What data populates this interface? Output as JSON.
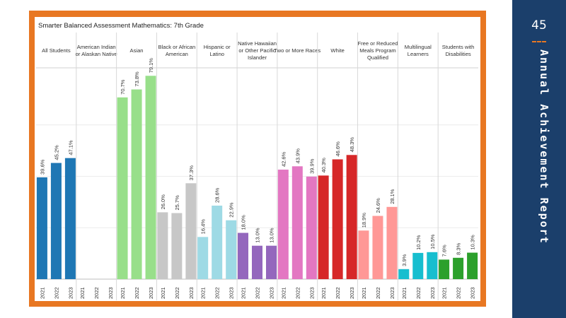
{
  "sidebar": {
    "page_number": "45",
    "title": "Annual  Achievement  Report"
  },
  "chart_data": {
    "type": "bar",
    "title": "Smarter Balanced Assessment Mathematics: 7th Grade",
    "xlabel": "",
    "ylabel": "",
    "ylim": [
      0,
      80
    ],
    "grid": true,
    "legend": "none",
    "years": [
      "2021",
      "2022",
      "2023"
    ],
    "groups": [
      {
        "name": "All Students",
        "color": "#1f77b4",
        "values": [
          39.6,
          45.2,
          47.1
        ],
        "labels": [
          "39.6%",
          "45.2%",
          "47.1%"
        ]
      },
      {
        "name": "American Indian or Alaskan Native",
        "color": "#1f77b4",
        "values": [
          null,
          null,
          null
        ],
        "labels": [
          "",
          "",
          ""
        ]
      },
      {
        "name": "Asian",
        "color": "#98df8a",
        "values": [
          70.7,
          73.8,
          79.1
        ],
        "labels": [
          "70.7%",
          "73.8%",
          "79.1%"
        ]
      },
      {
        "name": "Black or African American",
        "color": "#c7c7c7",
        "values": [
          26.0,
          25.7,
          37.3
        ],
        "labels": [
          "26.0%",
          "25.7%",
          "37.3%"
        ]
      },
      {
        "name": "Hispanic or Latino",
        "color": "#9edae5",
        "values": [
          16.4,
          28.6,
          22.9
        ],
        "labels": [
          "16.4%",
          "28.6%",
          "22.9%"
        ]
      },
      {
        "name": "Native Hawaiian or Other Pacific Islander",
        "color": "#9467bd",
        "values": [
          18.0,
          13.0,
          13.0
        ],
        "labels": [
          "18.0%",
          "13.0%",
          "13.0%"
        ]
      },
      {
        "name": "Two or More Races",
        "color": "#e377c2",
        "values": [
          42.6,
          43.9,
          39.9
        ],
        "labels": [
          "42.6%",
          "43.9%",
          "39.9%"
        ]
      },
      {
        "name": "White",
        "color": "#d62728",
        "values": [
          40.3,
          46.6,
          48.3
        ],
        "labels": [
          "40.3%",
          "46.6%",
          "48.3%"
        ]
      },
      {
        "name": "Free or Reduced Meals Program Qualified",
        "color": "#ff9896",
        "values": [
          18.9,
          24.6,
          28.1
        ],
        "labels": [
          "18.9%",
          "24.6%",
          "28.1%"
        ]
      },
      {
        "name": "Multilingual Learners",
        "color": "#17becf",
        "values": [
          3.9,
          10.2,
          10.5
        ],
        "labels": [
          "3.9%",
          "10.2%",
          "10.5%"
        ]
      },
      {
        "name": "Students with Disabilities",
        "color": "#2ca02c",
        "values": [
          7.6,
          8.3,
          10.3
        ],
        "labels": [
          "7.6%",
          "8.3%",
          "10.3%"
        ]
      }
    ]
  }
}
